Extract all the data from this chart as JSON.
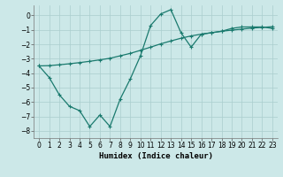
{
  "line1_x": [
    0,
    1,
    2,
    3,
    4,
    5,
    6,
    7,
    8,
    9,
    10,
    11,
    12,
    13,
    14,
    15,
    16,
    17,
    18,
    19,
    20,
    21,
    22,
    23
  ],
  "line1_y": [
    -3.5,
    -4.3,
    -5.5,
    -6.3,
    -6.6,
    -7.7,
    -6.9,
    -7.7,
    -5.8,
    -4.4,
    -2.8,
    -0.7,
    0.1,
    0.4,
    -1.2,
    -2.2,
    -1.3,
    -1.2,
    -1.1,
    -0.9,
    -0.8,
    -0.8,
    -0.8,
    -0.9
  ],
  "line2_x": [
    0,
    1,
    2,
    3,
    4,
    5,
    6,
    7,
    8,
    9,
    10,
    11,
    12,
    13,
    14,
    15,
    16,
    17,
    18,
    19,
    20,
    21,
    22,
    23
  ],
  "line2_y": [
    -3.5,
    -3.48,
    -3.42,
    -3.35,
    -3.27,
    -3.18,
    -3.08,
    -2.97,
    -2.8,
    -2.63,
    -2.42,
    -2.2,
    -1.97,
    -1.77,
    -1.58,
    -1.42,
    -1.3,
    -1.2,
    -1.1,
    -1.02,
    -0.95,
    -0.88,
    -0.83,
    -0.78
  ],
  "line_color": "#1a7a6e",
  "bg_color": "#cce8e8",
  "grid_color": "#aacece",
  "xlabel": "Humidex (Indice chaleur)",
  "ylim": [
    -8.5,
    0.7
  ],
  "xlim": [
    -0.5,
    23.5
  ],
  "yticks": [
    0,
    -1,
    -2,
    -3,
    -4,
    -5,
    -6,
    -7,
    -8
  ],
  "xticks": [
    0,
    1,
    2,
    3,
    4,
    5,
    6,
    7,
    8,
    9,
    10,
    11,
    12,
    13,
    14,
    15,
    16,
    17,
    18,
    19,
    20,
    21,
    22,
    23
  ],
  "markersize": 2.5,
  "linewidth": 0.9,
  "tick_fontsize": 5.5,
  "xlabel_fontsize": 6.5
}
